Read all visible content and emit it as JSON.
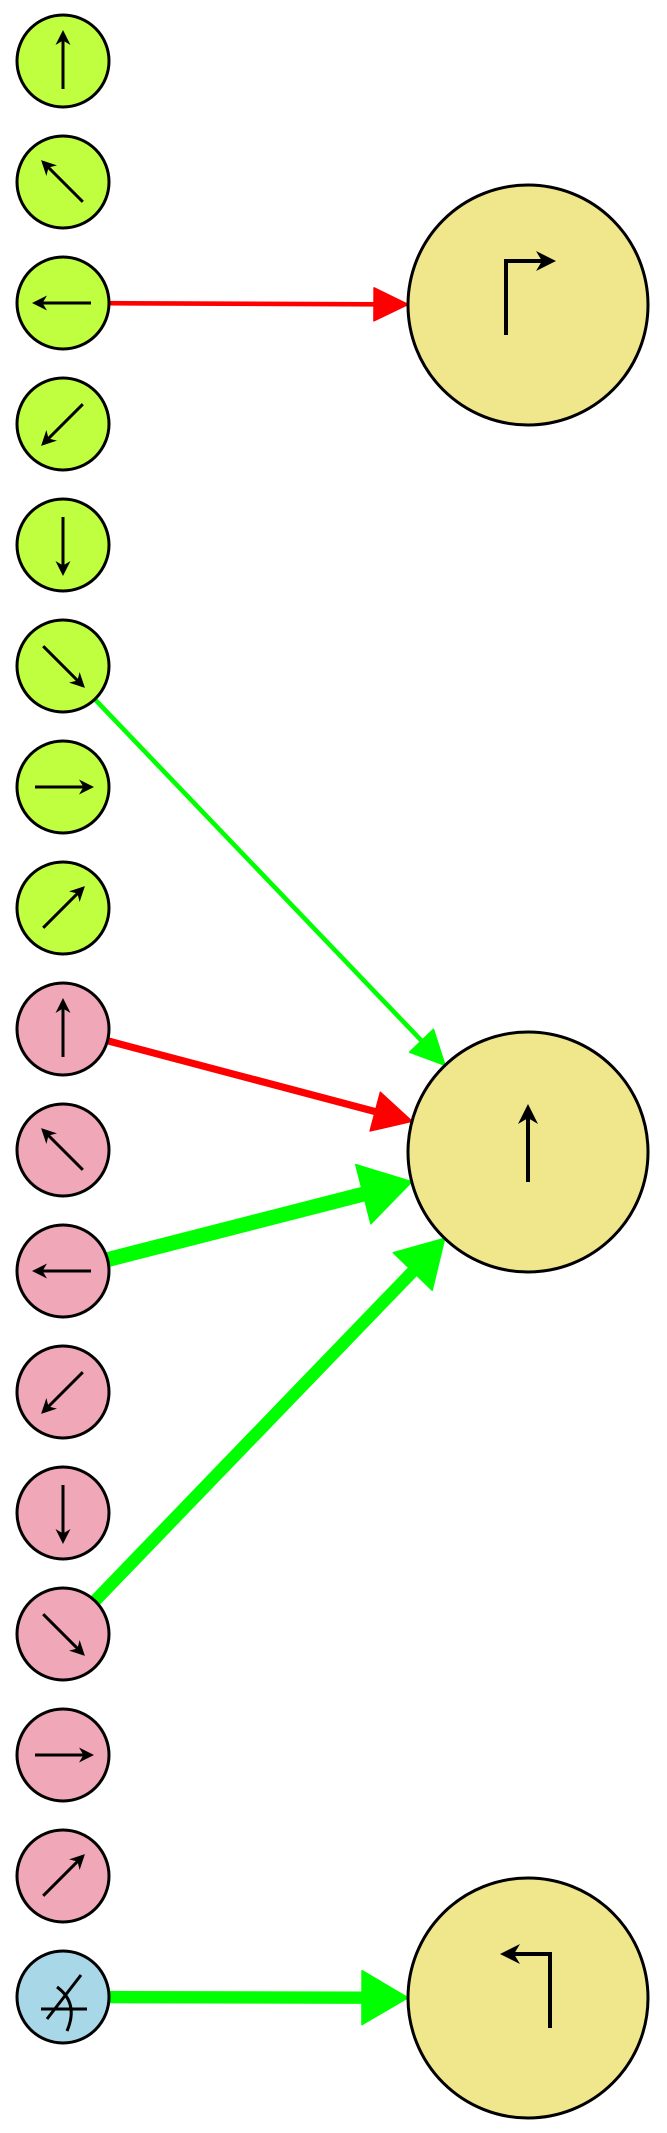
{
  "diagram": {
    "colors": {
      "input_green": "#c0ff40",
      "input_pink": "#f0a8b8",
      "input_blue": "#a8d8e8",
      "output_yellow": "#f0e68c",
      "edge_red": "#ff0000",
      "edge_green": "#00ff00",
      "stroke": "#000000"
    },
    "inputs": [
      {
        "id": "g-up",
        "group": "green",
        "icon": "arrow-up"
      },
      {
        "id": "g-upleft",
        "group": "green",
        "icon": "arrow-up-left"
      },
      {
        "id": "g-left",
        "group": "green",
        "icon": "arrow-left"
      },
      {
        "id": "g-downleft",
        "group": "green",
        "icon": "arrow-down-left"
      },
      {
        "id": "g-down",
        "group": "green",
        "icon": "arrow-down"
      },
      {
        "id": "g-downright",
        "group": "green",
        "icon": "arrow-down-right"
      },
      {
        "id": "g-right",
        "group": "green",
        "icon": "arrow-right"
      },
      {
        "id": "g-upright",
        "group": "green",
        "icon": "arrow-up-right"
      },
      {
        "id": "p-up",
        "group": "pink",
        "icon": "arrow-up"
      },
      {
        "id": "p-upleft",
        "group": "pink",
        "icon": "arrow-up-left"
      },
      {
        "id": "p-left",
        "group": "pink",
        "icon": "arrow-left"
      },
      {
        "id": "p-downleft",
        "group": "pink",
        "icon": "arrow-down-left"
      },
      {
        "id": "p-down",
        "group": "pink",
        "icon": "arrow-down"
      },
      {
        "id": "p-downright",
        "group": "pink",
        "icon": "arrow-down-right"
      },
      {
        "id": "p-right",
        "group": "pink",
        "icon": "arrow-right"
      },
      {
        "id": "p-upright",
        "group": "pink",
        "icon": "arrow-up-right"
      },
      {
        "id": "b-angle",
        "group": "blue",
        "icon": "angle"
      }
    ],
    "outputs": [
      {
        "id": "out-turn-right",
        "icon": "turn-right-arrow"
      },
      {
        "id": "out-straight",
        "icon": "straight-up-arrow"
      },
      {
        "id": "out-turn-left",
        "icon": "turn-left-arrow"
      }
    ],
    "edges": [
      {
        "from": "g-left",
        "to": "out-turn-right",
        "color": "red",
        "weight": 1
      },
      {
        "from": "g-downright",
        "to": "out-straight",
        "color": "green",
        "weight": 1
      },
      {
        "from": "p-up",
        "to": "out-straight",
        "color": "red",
        "weight": 2
      },
      {
        "from": "p-left",
        "to": "out-straight",
        "color": "green",
        "weight": 5
      },
      {
        "from": "p-downright",
        "to": "out-straight",
        "color": "green",
        "weight": 4
      },
      {
        "from": "b-angle",
        "to": "out-turn-left",
        "color": "green",
        "weight": 4
      }
    ]
  }
}
